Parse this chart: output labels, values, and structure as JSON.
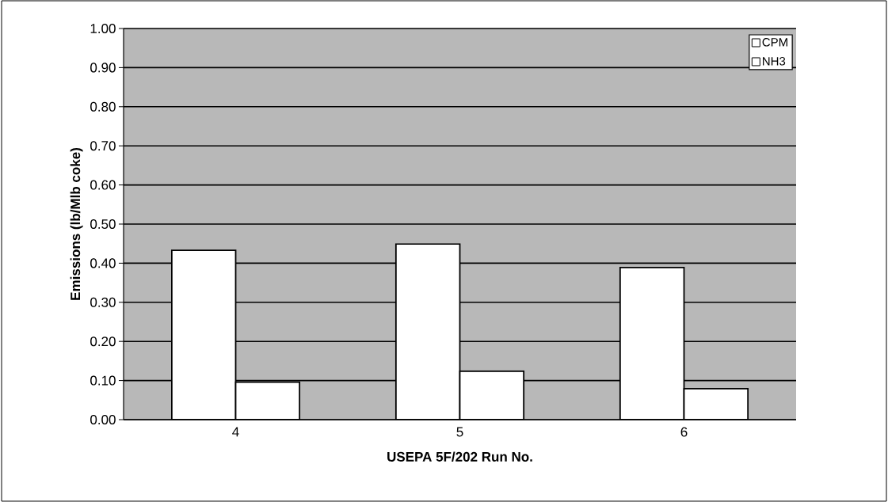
{
  "chart_data": {
    "type": "bar",
    "xlabel": "USEPA 5F/202 Run No.",
    "ylabel": "Emissions  (lb/Mlb coke)",
    "categories": [
      "4",
      "5",
      "6"
    ],
    "series": [
      {
        "name": "CPM",
        "color": "#ffffff",
        "values": [
          0.433,
          0.449,
          0.389
        ]
      },
      {
        "name": "NH3",
        "color": "#ffffff",
        "values": [
          0.096,
          0.124,
          0.079
        ]
      }
    ],
    "ylim": [
      0,
      1
    ],
    "yticks": [
      {
        "value": 0,
        "label": "0.00"
      },
      {
        "value": 0.1,
        "label": "0.10"
      },
      {
        "value": 0.2,
        "label": "0.20"
      },
      {
        "value": 0.3,
        "label": "0.30"
      },
      {
        "value": 0.4,
        "label": "0.40"
      },
      {
        "value": 0.5,
        "label": "0.50"
      },
      {
        "value": 0.6,
        "label": "0.60"
      },
      {
        "value": 0.7,
        "label": "0.70"
      },
      {
        "value": 0.8,
        "label": "0.80"
      },
      {
        "value": 0.9,
        "label": "0.90"
      },
      {
        "value": 1,
        "label": "1.00"
      }
    ],
    "grid": "y",
    "legend": "top right"
  }
}
